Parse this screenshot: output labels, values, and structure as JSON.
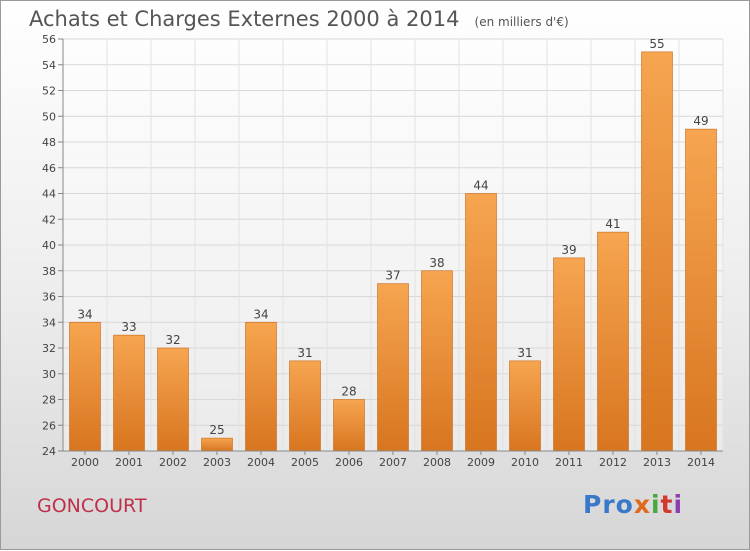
{
  "chart_data": {
    "type": "bar",
    "title": "Achats et Charges Externes 2000 à 2014",
    "subtitle": "(en milliers d'€)",
    "categories": [
      "2000",
      "2001",
      "2002",
      "2003",
      "2004",
      "2005",
      "2006",
      "2007",
      "2008",
      "2009",
      "2010",
      "2011",
      "2012",
      "2013",
      "2014"
    ],
    "values": [
      34,
      33,
      32,
      25,
      34,
      31,
      28,
      37,
      38,
      44,
      31,
      39,
      41,
      55,
      49
    ],
    "ylim": [
      24,
      56
    ],
    "yticks": [
      24,
      26,
      28,
      30,
      32,
      34,
      36,
      38,
      40,
      42,
      44,
      46,
      48,
      50,
      52,
      54,
      56
    ],
    "grid": true,
    "bar_color": "#f0963a"
  },
  "footer": {
    "commune": "GONCOURT",
    "logo": [
      "Pro",
      "x",
      "i",
      "t",
      "i"
    ]
  }
}
